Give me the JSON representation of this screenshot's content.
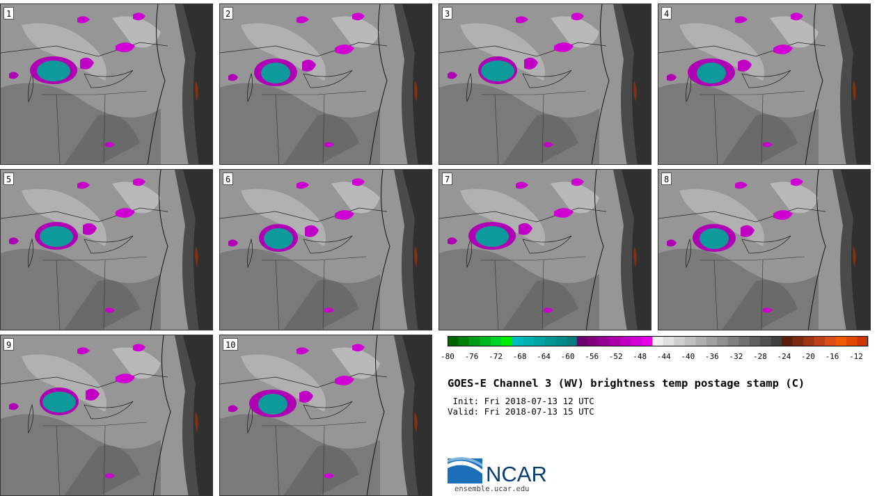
{
  "panels": [
    {
      "label": "1"
    },
    {
      "label": "2"
    },
    {
      "label": "3"
    },
    {
      "label": "4"
    },
    {
      "label": "5"
    },
    {
      "label": "6"
    },
    {
      "label": "7"
    },
    {
      "label": "8"
    },
    {
      "label": "9"
    },
    {
      "label": "10"
    }
  ],
  "colorbar": {
    "tick_labels": [
      "-80",
      "-76",
      "-72",
      "-68",
      "-64",
      "-60",
      "-56",
      "-52",
      "-48",
      "-44",
      "-40",
      "-36",
      "-32",
      "-28",
      "-24",
      "-20",
      "-16",
      "-12"
    ],
    "colors": [
      "#006400",
      "#00820a",
      "#009c14",
      "#00b81e",
      "#00d428",
      "#00ee00",
      "#00bcbc",
      "#00b0b0",
      "#00a3a3",
      "#009696",
      "#008a8a",
      "#007d7d",
      "#6e006e",
      "#82007f",
      "#960096",
      "#aa00aa",
      "#be00be",
      "#d200d2",
      "#e600e6",
      "#f0f0f0",
      "#e0e0e0",
      "#d0d0d0",
      "#c0c0c0",
      "#b0b0b0",
      "#a0a0a0",
      "#909090",
      "#808080",
      "#707070",
      "#606060",
      "#505050",
      "#404040",
      "#5a1e0a",
      "#7a2a0e",
      "#9a3612",
      "#ba4216",
      "#da4e1a",
      "#f05a00",
      "#e04800",
      "#cc3600"
    ]
  },
  "title": "GOES-E Channel 3 (WV) brightness temp postage stamp (C)",
  "init": " Init: Fri 2018-07-13 12 UTC",
  "valid": "Valid: Fri 2018-07-13 15 UTC",
  "logo": {
    "text": "NCAR",
    "url": "ensemble.ucar.edu"
  }
}
